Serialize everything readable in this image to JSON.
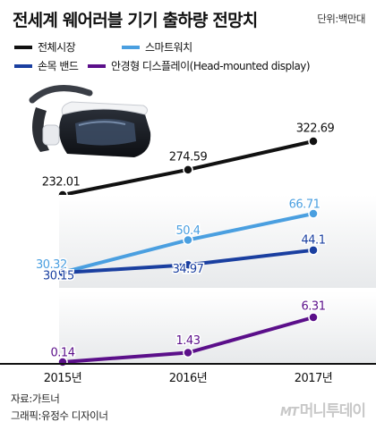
{
  "title": "전세계 웨어러블 기기 출하량 전망치",
  "unit_label": "단위:백만대",
  "legend": [
    {
      "label": "전체시장",
      "color": "#111111"
    },
    {
      "label": "스마트워치",
      "color": "#4a9fe0"
    },
    {
      "label": "손목 밴드",
      "color": "#1a3fa0"
    },
    {
      "label": "안경형 디스플레이(Head-mounted display)",
      "color": "#5b0f8a"
    }
  ],
  "source": {
    "source_line": "자료:가트너",
    "graphic_line": "그래픽:유정수 디자이너"
  },
  "logo": {
    "mark": "MT",
    "text": "머니투데이"
  },
  "chart_data": {
    "type": "line",
    "x": [
      "2015년",
      "2016년",
      "2017년"
    ],
    "panels": [
      {
        "series": [
          {
            "name": "전체시장",
            "color": "#111111",
            "values": [
              232.01,
              274.59,
              322.69
            ],
            "labels": [
              "232.01",
              "274.59",
              "322.69"
            ]
          }
        ]
      },
      {
        "series": [
          {
            "name": "스마트워치",
            "color": "#4a9fe0",
            "values": [
              30.32,
              50.4,
              66.71
            ],
            "labels": [
              "30.32",
              "50.4",
              "66.71"
            ]
          },
          {
            "name": "손목 밴드",
            "color": "#1a3fa0",
            "values": [
              30.15,
              34.97,
              44.1
            ],
            "labels": [
              "30.15",
              "34.97",
              "44.1"
            ]
          }
        ]
      },
      {
        "series": [
          {
            "name": "안경형 디스플레이(Head-mounted display)",
            "color": "#5b0f8a",
            "values": [
              0.14,
              1.43,
              6.31
            ],
            "labels": [
              "0.14",
              "1.43",
              "6.31"
            ]
          }
        ]
      }
    ]
  }
}
